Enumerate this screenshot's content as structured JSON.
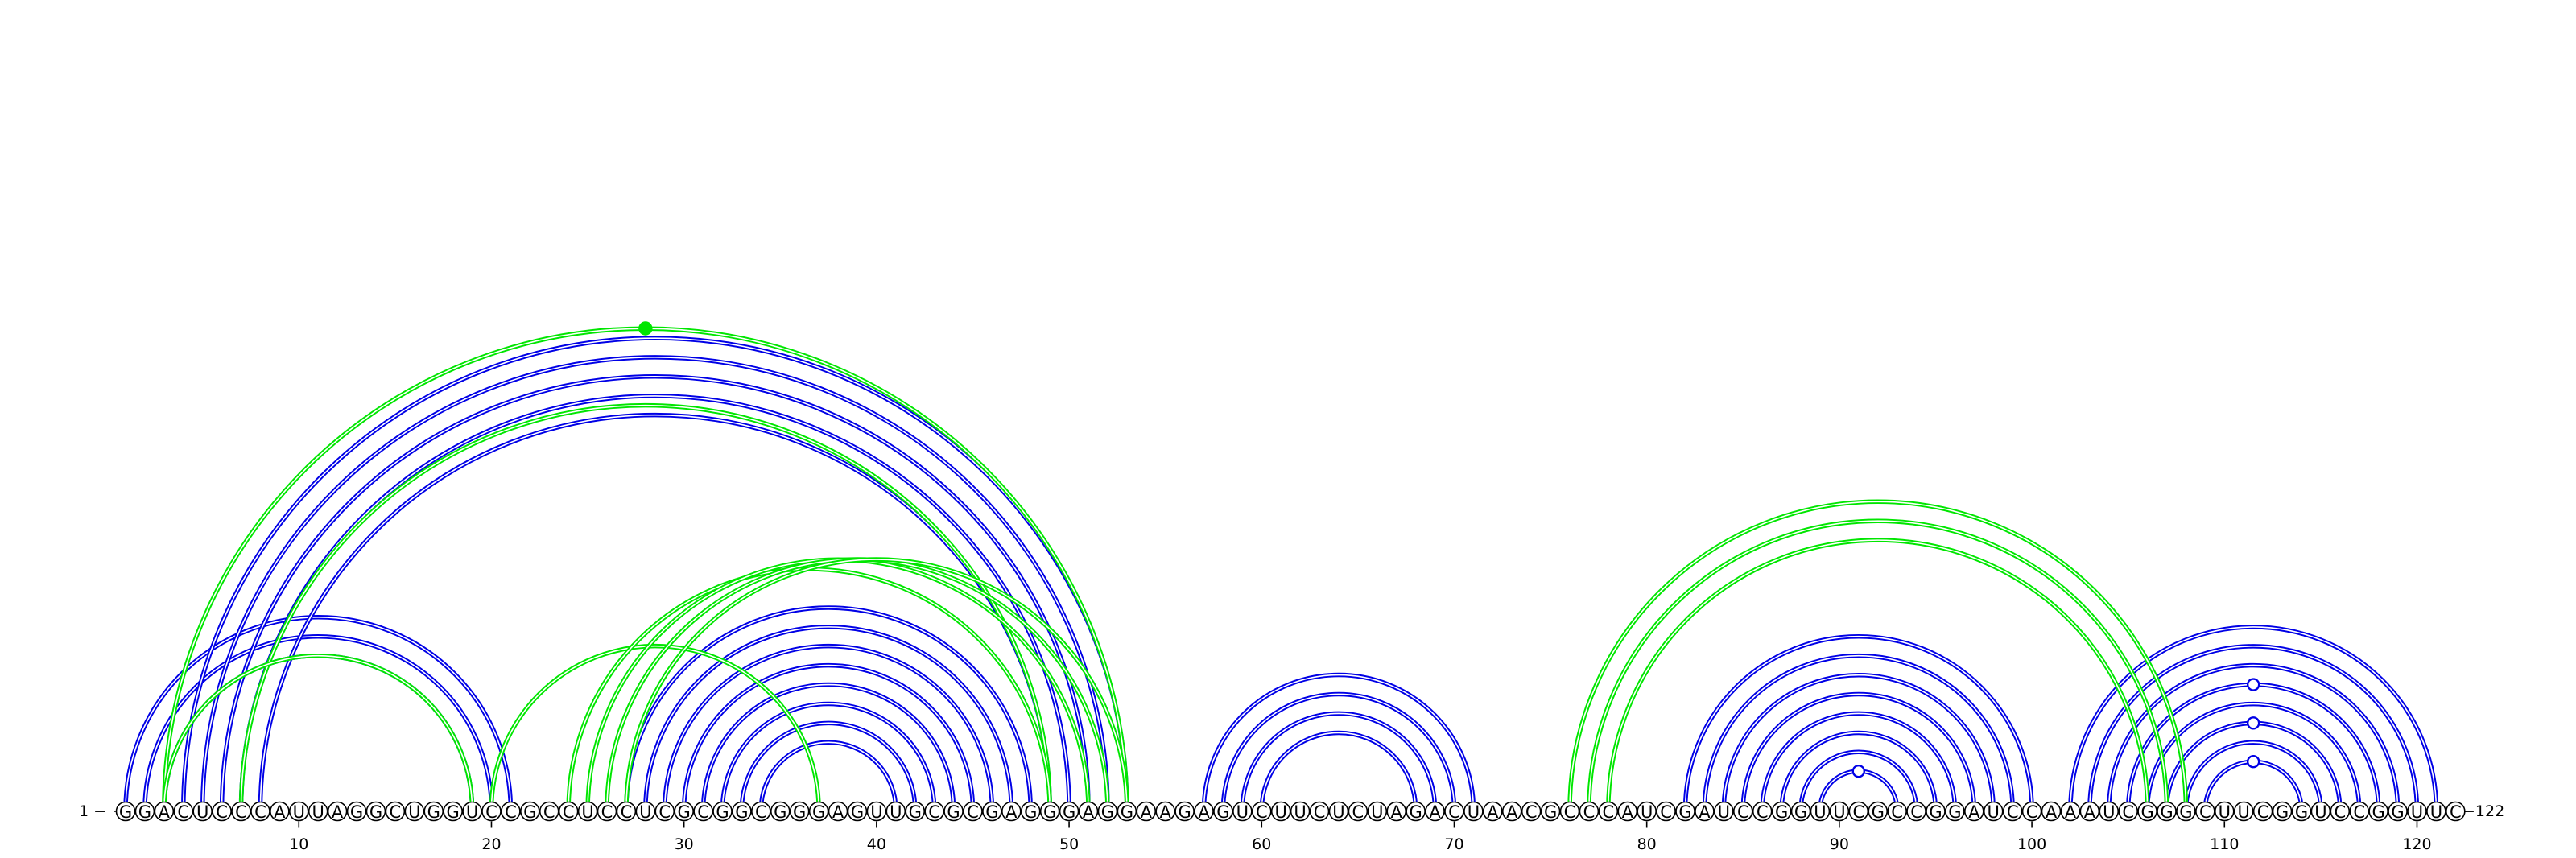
{
  "sequence": "GGACUCCCAUUAGGCUGGUCCGCCUCCUCGCGGCGGGAGUUGCGCGAGGGAGGAAGAGUCUUCUCUAGACUAACGCCCAUCGAUCCGGUUCGCCGGAUCCAAAUCGGGCUUCGGUCCGGUUC",
  "start_label": "1 −",
  "end_label": "−122",
  "tick_labels": [
    "10",
    "20",
    "30",
    "40",
    "50",
    "60",
    "70",
    "80",
    "90",
    "100",
    "110",
    "120"
  ],
  "colors": {
    "structure_a": "#0000e6",
    "structure_b": "#00e600"
  },
  "arc_groups": [
    {
      "color": "structure_a",
      "pairs": [
        [
          1,
          21
        ],
        [
          2,
          20
        ],
        [
          3,
          19
        ]
      ]
    },
    {
      "color": "structure_a",
      "pairs": [
        [
          4,
          53
        ],
        [
          5,
          52
        ],
        [
          6,
          51
        ],
        [
          7,
          50
        ],
        [
          8,
          49
        ]
      ]
    },
    {
      "color": "structure_a",
      "pairs": [
        [
          27,
          48
        ],
        [
          28,
          47
        ],
        [
          29,
          46
        ],
        [
          30,
          45
        ],
        [
          31,
          44
        ],
        [
          32,
          43
        ],
        [
          33,
          42
        ],
        [
          34,
          41
        ]
      ]
    },
    {
      "color": "structure_a",
      "pairs": [
        [
          57,
          71
        ],
        [
          58,
          70
        ],
        [
          59,
          69
        ],
        [
          60,
          68
        ]
      ]
    },
    {
      "color": "structure_a",
      "pairs": [
        [
          82,
          100
        ],
        [
          83,
          99
        ],
        [
          84,
          98
        ],
        [
          85,
          97
        ],
        [
          86,
          96
        ],
        [
          87,
          95
        ],
        [
          88,
          94
        ],
        [
          89,
          93
        ]
      ]
    },
    {
      "color": "structure_a",
      "pairs": [
        [
          102,
          121
        ],
        [
          103,
          120
        ],
        [
          104,
          119
        ],
        [
          105,
          118
        ],
        [
          106,
          117
        ],
        [
          107,
          116
        ],
        [
          108,
          115
        ],
        [
          109,
          114
        ]
      ]
    },
    {
      "color": "structure_b",
      "pairs": [
        [
          3,
          53
        ],
        [
          7,
          49
        ]
      ]
    },
    {
      "color": "structure_b",
      "pairs": [
        [
          20,
          37
        ],
        [
          24,
          49
        ],
        [
          25,
          51
        ],
        [
          26,
          52
        ],
        [
          27,
          53
        ]
      ]
    },
    {
      "color": "structure_b",
      "pairs": [
        [
          76,
          108
        ],
        [
          77,
          107
        ],
        [
          78,
          106
        ]
      ]
    },
    {
      "color": "structure_b",
      "pairs": [
        [
          3,
          19
        ]
      ]
    }
  ],
  "arc_markers": [
    {
      "pair": [
        3,
        53
      ],
      "style": "filled",
      "color": "structure_b"
    },
    {
      "pair": [
        89,
        93
      ],
      "style": "open",
      "color": "structure_a"
    },
    {
      "pair": [
        109,
        114
      ],
      "style": "open",
      "color": "structure_a"
    },
    {
      "pair": [
        107,
        116
      ],
      "style": "open",
      "color": "structure_a"
    },
    {
      "pair": [
        105,
        118
      ],
      "style": "open",
      "color": "structure_a"
    }
  ]
}
